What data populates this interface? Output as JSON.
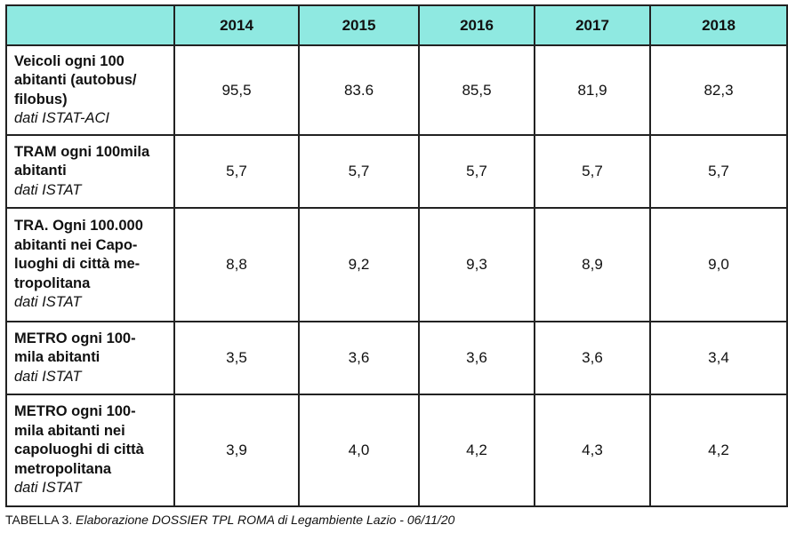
{
  "chart_data": {
    "type": "table",
    "columns": [
      "",
      "2014",
      "2015",
      "2016",
      "2017",
      "2018"
    ],
    "rows": [
      {
        "label_lines": [
          "Veicoli ogni 100",
          "abitanti (autobus/",
          "filobus)"
        ],
        "source": "dati ISTAT-ACI",
        "values": [
          "95,5",
          "83.6",
          "85,5",
          "81,9",
          "82,3"
        ]
      },
      {
        "label_lines": [
          "TRAM ogni 100mila",
          "abitanti"
        ],
        "source": "dati ISTAT",
        "values": [
          "5,7",
          "5,7",
          "5,7",
          "5,7",
          "5,7"
        ]
      },
      {
        "label_lines": [
          "TRA. Ogni 100.000",
          "abitanti nei Capo-",
          "luoghi di città me-",
          "tropolitana"
        ],
        "source": "dati ISTAT",
        "values": [
          "8,8",
          "9,2",
          "9,3",
          "8,9",
          "9,0"
        ]
      },
      {
        "label_lines": [
          "METRO ogni 100-",
          "mila abitanti"
        ],
        "source": "dati ISTAT",
        "values": [
          "3,5",
          "3,6",
          "3,6",
          "3,6",
          "3,4"
        ]
      },
      {
        "label_lines": [
          "METRO ogni 100-",
          "mila abitanti nei",
          "capoluoghi di città",
          "metropolitana"
        ],
        "source": "dati ISTAT",
        "values": [
          "3,9",
          "4,0",
          "4,2",
          "4,3",
          "4,2"
        ]
      }
    ],
    "header_color": "#8fe9e1"
  },
  "caption": {
    "prefix": "TABELLA 3. ",
    "text": "Elaborazione DOSSIER TPL ROMA di Legambiente Lazio - 06/11/20"
  }
}
